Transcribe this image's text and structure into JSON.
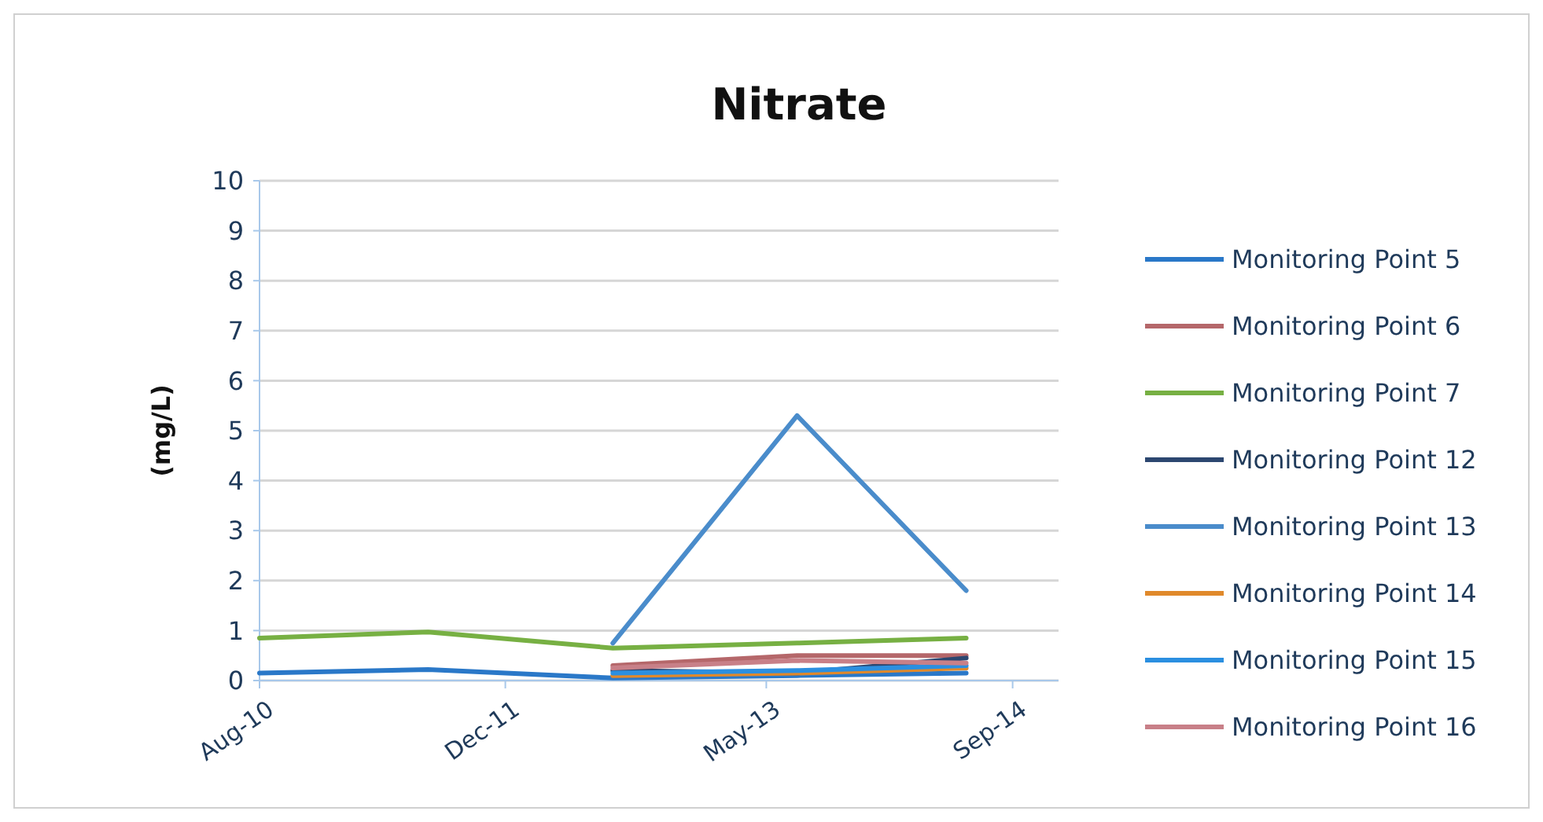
{
  "chart_data": {
    "type": "line",
    "title": "Nitrate",
    "ylabel": "(mg/L)",
    "x": [
      "2010-08",
      "2011-07",
      "2012-07",
      "2013-07",
      "2014-06"
    ],
    "xlim": [
      "2010-08",
      "2014-12"
    ],
    "xticks": [
      {
        "value": "2010-08",
        "label": "Aug-10"
      },
      {
        "value": "2011-12",
        "label": "Dec-11"
      },
      {
        "value": "2013-05",
        "label": "May-13"
      },
      {
        "value": "2014-09",
        "label": "Sep-14"
      }
    ],
    "ylim": [
      0,
      10
    ],
    "yticks": [
      0,
      1,
      2,
      3,
      4,
      5,
      6,
      7,
      8,
      9,
      10
    ],
    "grid": "y",
    "legend": "right",
    "marker": "none",
    "line_style": "solid",
    "series": [
      {
        "name": "Monitoring Point 5",
        "color": "#2a78c8",
        "values": [
          0.15,
          0.22,
          0.05,
          0.1,
          0.15
        ]
      },
      {
        "name": "Monitoring Point 6",
        "color": "#b5676a",
        "values": [
          null,
          null,
          0.3,
          0.5,
          0.5
        ]
      },
      {
        "name": "Monitoring Point 7",
        "color": "#77b043",
        "values": [
          0.85,
          0.97,
          0.65,
          0.75,
          0.85
        ]
      },
      {
        "name": "Monitoring Point 12",
        "color": "#2c4770",
        "values": [
          null,
          null,
          0.2,
          0.15,
          0.45
        ]
      },
      {
        "name": "Monitoring Point 13",
        "color": "#4a8ccb",
        "values": [
          null,
          null,
          0.75,
          5.3,
          1.8
        ]
      },
      {
        "name": "Monitoring Point 14",
        "color": "#e0892b",
        "values": [
          null,
          null,
          0.1,
          0.15,
          0.25
        ]
      },
      {
        "name": "Monitoring Point 15",
        "color": "#2b8fe0",
        "values": [
          null,
          null,
          0.15,
          0.2,
          0.3
        ]
      },
      {
        "name": "Monitoring Point 16",
        "color": "#c88088",
        "values": [
          null,
          null,
          0.25,
          0.4,
          0.35
        ]
      }
    ]
  }
}
